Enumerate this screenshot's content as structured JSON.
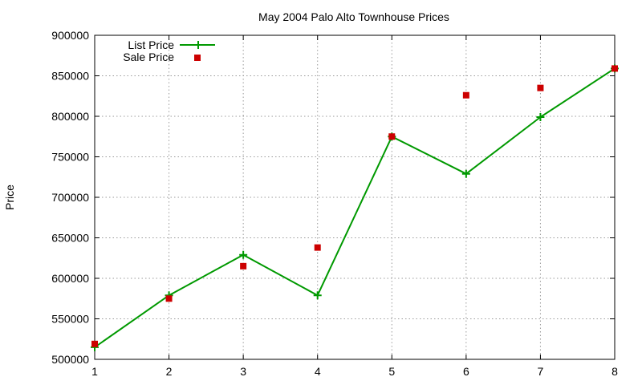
{
  "chart_data": {
    "type": "line",
    "title": "May 2004 Palo Alto Townhouse Prices",
    "xlabel": "",
    "ylabel": "Price",
    "xlim": [
      1,
      8
    ],
    "ylim": [
      500000,
      900000
    ],
    "x_ticks": [
      "1",
      "2",
      "3",
      "4",
      "5",
      "6",
      "7",
      "8"
    ],
    "y_ticks": [
      "500000",
      "550000",
      "600000",
      "650000",
      "700000",
      "750000",
      "800000",
      "850000",
      "900000"
    ],
    "x": [
      1,
      2,
      3,
      4,
      5,
      6,
      7,
      8
    ],
    "grid": true,
    "legend_position": "top-left",
    "series": [
      {
        "name": "List Price",
        "style": "line-with-plus-markers",
        "color": "#009900",
        "values": [
          515000,
          579000,
          629000,
          579000,
          775000,
          729000,
          799000,
          859000
        ]
      },
      {
        "name": "Sale Price",
        "style": "square-markers",
        "color": "#cc0000",
        "values": [
          519000,
          575000,
          615000,
          638000,
          775000,
          826000,
          835000,
          859000
        ]
      }
    ]
  }
}
